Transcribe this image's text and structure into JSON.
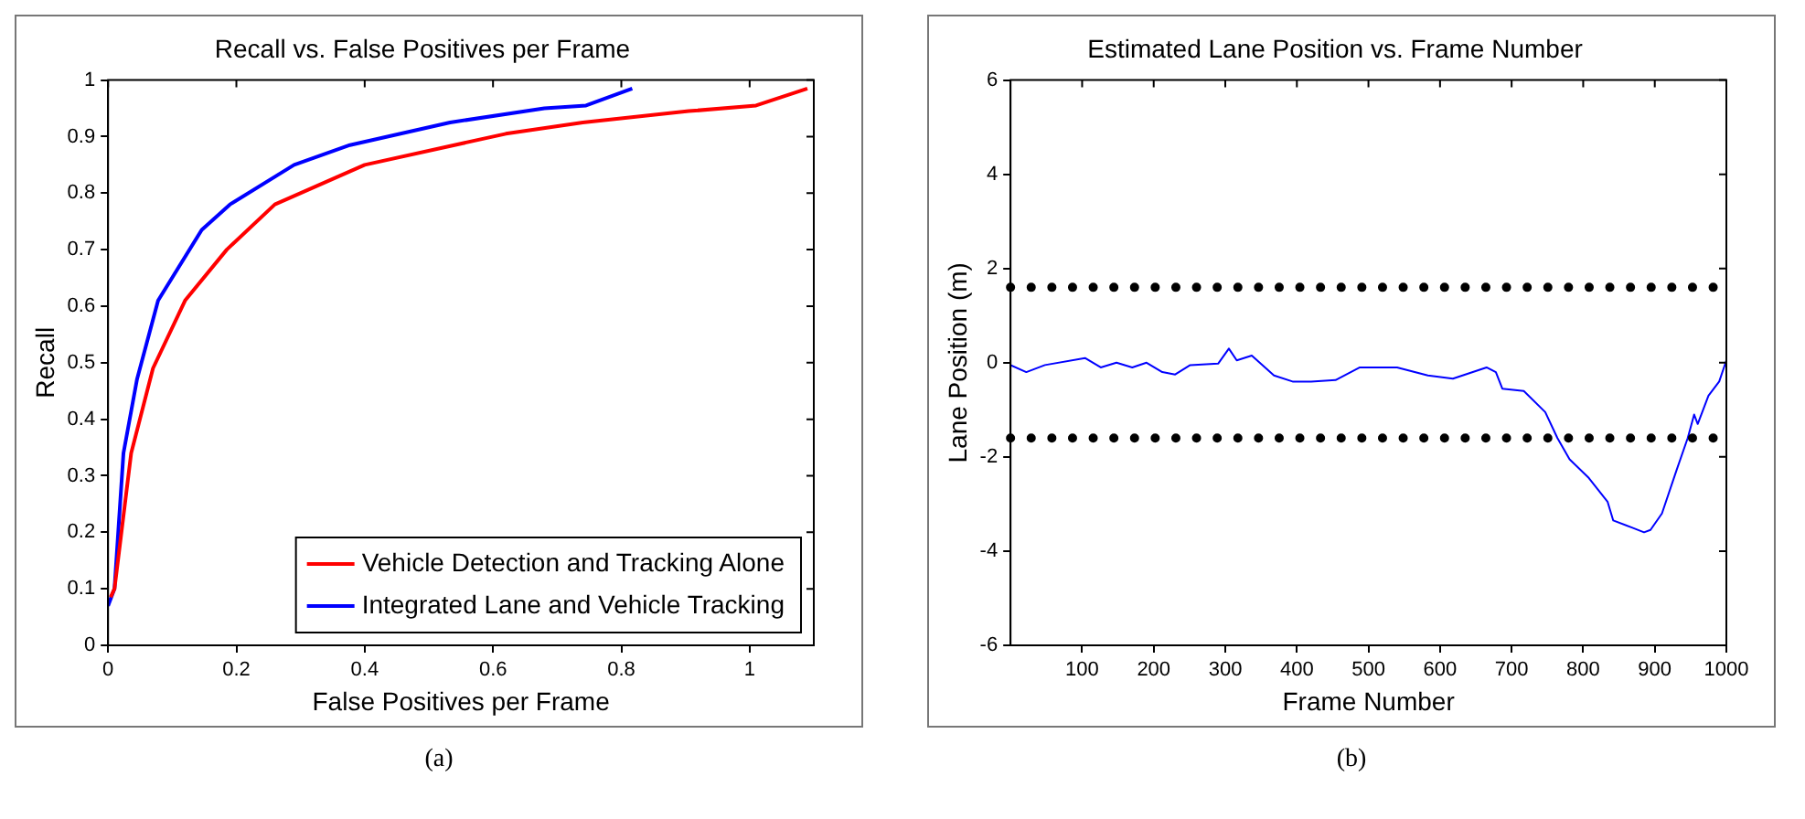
{
  "chart_data": [
    {
      "type": "line",
      "title": "Recall vs. False Positives per Frame",
      "xlabel": "False Positives per Frame",
      "ylabel": "Recall",
      "xlim": [
        0,
        1.1
      ],
      "xticks": [
        0,
        0.2,
        0.4,
        0.6,
        0.8,
        1
      ],
      "ylim": [
        0,
        1
      ],
      "yticks": [
        0,
        0.1,
        0.2,
        0.3,
        0.4,
        0.5,
        0.6,
        0.7,
        0.8,
        0.9,
        1
      ],
      "grid": false,
      "legend": "bottom right",
      "marker": "none",
      "annotations": [
        "(a)"
      ],
      "series": [
        {
          "name": "Vehicle Detection and Tracking Alone",
          "color": "#ff0000",
          "x": [
            0.004,
            0.01,
            0.036,
            0.07,
            0.12,
            0.185,
            0.26,
            0.4,
            0.62,
            0.74,
            0.905,
            1.01,
            1.09
          ],
          "values": [
            0.085,
            0.1,
            0.34,
            0.49,
            0.61,
            0.7,
            0.78,
            0.85,
            0.905,
            0.925,
            0.945,
            0.955,
            0.985
          ]
        },
        {
          "name": "Integrated Lane and Vehicle Tracking",
          "color": "#0000ff",
          "x": [
            0,
            0.01,
            0.024,
            0.045,
            0.078,
            0.146,
            0.19,
            0.29,
            0.377,
            0.533,
            0.68,
            0.745,
            0.817
          ],
          "values": [
            0.07,
            0.1,
            0.34,
            0.47,
            0.61,
            0.735,
            0.78,
            0.85,
            0.885,
            0.925,
            0.95,
            0.955,
            0.985
          ]
        }
      ]
    },
    {
      "type": "line",
      "title": "Estimated Lane Position vs. Frame Number",
      "xlabel": "Frame Number",
      "ylabel": "Lane Position (m)",
      "xlim": [
        0,
        1000
      ],
      "xticks": [
        100,
        200,
        300,
        400,
        500,
        600,
        700,
        800,
        900,
        1000
      ],
      "ylim": [
        -6,
        6
      ],
      "yticks": [
        -6,
        -4,
        -2,
        0,
        2,
        4,
        6
      ],
      "grid": false,
      "marker": "none",
      "annotations": [
        "(b)"
      ],
      "ref_lines": [
        {
          "axis": "y",
          "value": 1.6,
          "color": "#000000",
          "line_style": "dotted"
        },
        {
          "axis": "y",
          "value": -1.6,
          "color": "#000000",
          "line_style": "dotted"
        }
      ],
      "series": [
        {
          "color": "#0000ff",
          "x": [
            0,
            22,
            48,
            104,
            126,
            148,
            170,
            190,
            212,
            230,
            251,
            290,
            305,
            316,
            337,
            368,
            394,
            420,
            454,
            488,
            540,
            583,
            618,
            665,
            678,
            687,
            717,
            747,
            764,
            781,
            808,
            834,
            842,
            868,
            885,
            894,
            910,
            930,
            946,
            955,
            960,
            975,
            990,
            1000
          ],
          "values": [
            -0.05,
            -0.2,
            -0.05,
            0.1,
            -0.1,
            0,
            -0.1,
            0,
            -0.2,
            -0.25,
            -0.05,
            -0.02,
            0.3,
            0.05,
            0.15,
            -0.27,
            -0.4,
            -0.4,
            -0.37,
            -0.1,
            -0.1,
            -0.27,
            -0.34,
            -0.1,
            -0.2,
            -0.55,
            -0.6,
            -1.05,
            -1.6,
            -2.05,
            -2.45,
            -2.95,
            -3.35,
            -3.5,
            -3.6,
            -3.55,
            -3.2,
            -2.3,
            -1.6,
            -1.1,
            -1.3,
            -0.7,
            -0.4,
            0.05
          ]
        }
      ]
    }
  ]
}
